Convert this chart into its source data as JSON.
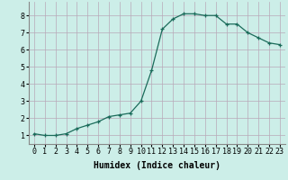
{
  "x": [
    0,
    1,
    2,
    3,
    4,
    5,
    6,
    7,
    8,
    9,
    10,
    11,
    12,
    13,
    14,
    15,
    16,
    17,
    18,
    19,
    20,
    21,
    22,
    23
  ],
  "y": [
    1.1,
    1.0,
    1.0,
    1.1,
    1.4,
    1.6,
    1.8,
    2.1,
    2.2,
    2.3,
    3.0,
    4.8,
    7.2,
    7.8,
    8.1,
    8.1,
    8.0,
    8.0,
    7.5,
    7.5,
    7.0,
    6.7,
    6.4,
    6.3
  ],
  "xlabel": "Humidex (Indice chaleur)",
  "ylim": [
    0.5,
    8.8
  ],
  "xlim": [
    -0.5,
    23.5
  ],
  "yticks": [
    1,
    2,
    3,
    4,
    5,
    6,
    7,
    8
  ],
  "xtick_labels": [
    "0",
    "1",
    "2",
    "3",
    "4",
    "5",
    "6",
    "7",
    "8",
    "9",
    "10",
    "11",
    "12",
    "13",
    "14",
    "15",
    "16",
    "17",
    "18",
    "19",
    "20",
    "21",
    "22",
    "23"
  ],
  "line_color": "#1a6b5a",
  "marker": "+",
  "bg_color": "#cceee8",
  "grid_color": "#b8a8b8",
  "label_fontsize": 7,
  "tick_fontsize": 6,
  "linewidth": 0.9,
  "markersize": 3,
  "markeredgewidth": 0.9
}
